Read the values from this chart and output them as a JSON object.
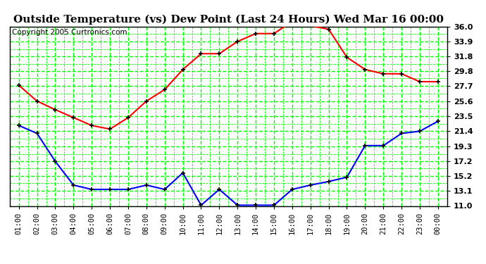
{
  "title": "Outside Temperature (vs) Dew Point (Last 24 Hours) Wed Mar 16 00:00",
  "copyright": "Copyright 2005 Curtronics.com",
  "x_labels": [
    "01:00",
    "02:00",
    "03:00",
    "04:00",
    "05:00",
    "06:00",
    "07:00",
    "08:00",
    "09:00",
    "10:00",
    "11:00",
    "12:00",
    "13:00",
    "14:00",
    "15:00",
    "16:00",
    "17:00",
    "18:00",
    "19:00",
    "20:00",
    "21:00",
    "22:00",
    "23:00",
    "00:00"
  ],
  "temp_red": [
    27.8,
    25.6,
    24.4,
    23.3,
    22.2,
    21.7,
    23.3,
    25.6,
    27.2,
    30.0,
    32.2,
    32.2,
    33.9,
    35.0,
    35.0,
    36.7,
    36.1,
    35.6,
    31.7,
    30.0,
    29.4,
    29.4,
    28.3,
    28.3
  ],
  "dew_blue": [
    22.2,
    21.1,
    17.2,
    13.9,
    13.3,
    13.3,
    13.3,
    13.9,
    13.3,
    15.6,
    11.1,
    13.3,
    11.1,
    11.1,
    11.1,
    13.3,
    13.9,
    14.4,
    15.0,
    19.4,
    19.4,
    21.1,
    21.4,
    22.8
  ],
  "ylim": [
    11.0,
    36.0
  ],
  "yticks": [
    11.0,
    13.1,
    15.2,
    17.2,
    19.3,
    21.4,
    23.5,
    25.6,
    27.7,
    29.8,
    31.8,
    33.9,
    36.0
  ],
  "bg_color": "#ffffff",
  "plot_bg": "#ffffff",
  "grid_color": "#00ff00",
  "title_fontsize": 11,
  "tick_fontsize": 7.5,
  "copyright_fontsize": 7.5
}
